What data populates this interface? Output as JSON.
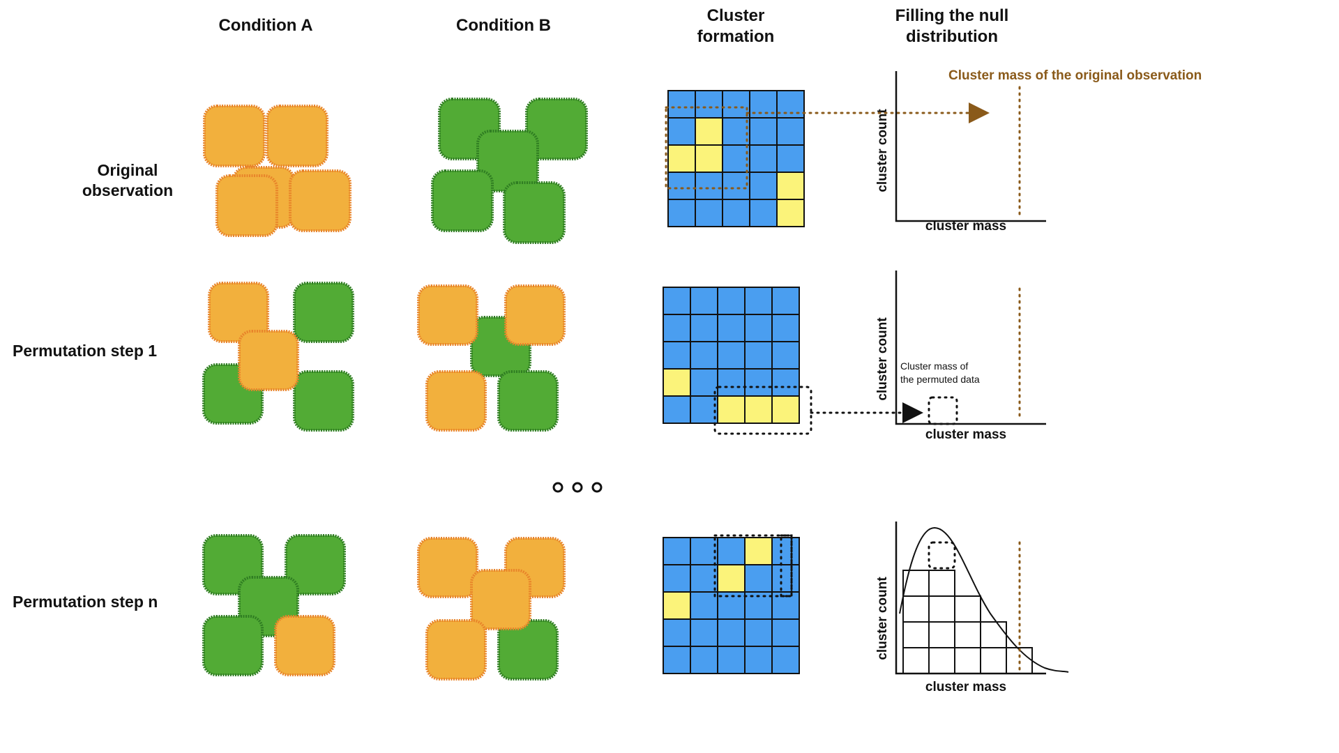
{
  "headers": {
    "condition_a": "Condition A",
    "condition_b": "Condition B",
    "cluster_formation": "Cluster\nformation",
    "null_distribution": "Filling the null\ndistribution"
  },
  "rows": {
    "original": "Original\nobservation",
    "perm1": "Permutation step 1",
    "permn": "Permutation step n"
  },
  "axes": {
    "x": "cluster mass",
    "y": "cluster count"
  },
  "annotations": {
    "original_mass": "Cluster mass of the original observation",
    "permuted_mass": "Cluster mass of\nthe permuted data"
  },
  "ellipsis": "ooo",
  "colors": {
    "orange": "#f2b03d",
    "orange_edge": "#e8842a",
    "green": "#52ab35",
    "green_edge": "#2f7d22",
    "blue": "#4a9ef0",
    "yellow": "#fbf37a",
    "brown": "#8a5a1a"
  },
  "grids": {
    "original_yellow_cells": [
      [
        1,
        1
      ],
      [
        2,
        0
      ],
      [
        2,
        1
      ],
      [
        3,
        4
      ],
      [
        4,
        4
      ]
    ],
    "perm1_yellow_cells": [
      [
        3,
        0
      ],
      [
        4,
        2
      ],
      [
        4,
        3
      ],
      [
        4,
        4
      ]
    ],
    "permn_yellow_cells": [
      [
        0,
        3
      ],
      [
        1,
        2
      ],
      [
        2,
        0
      ]
    ]
  }
}
